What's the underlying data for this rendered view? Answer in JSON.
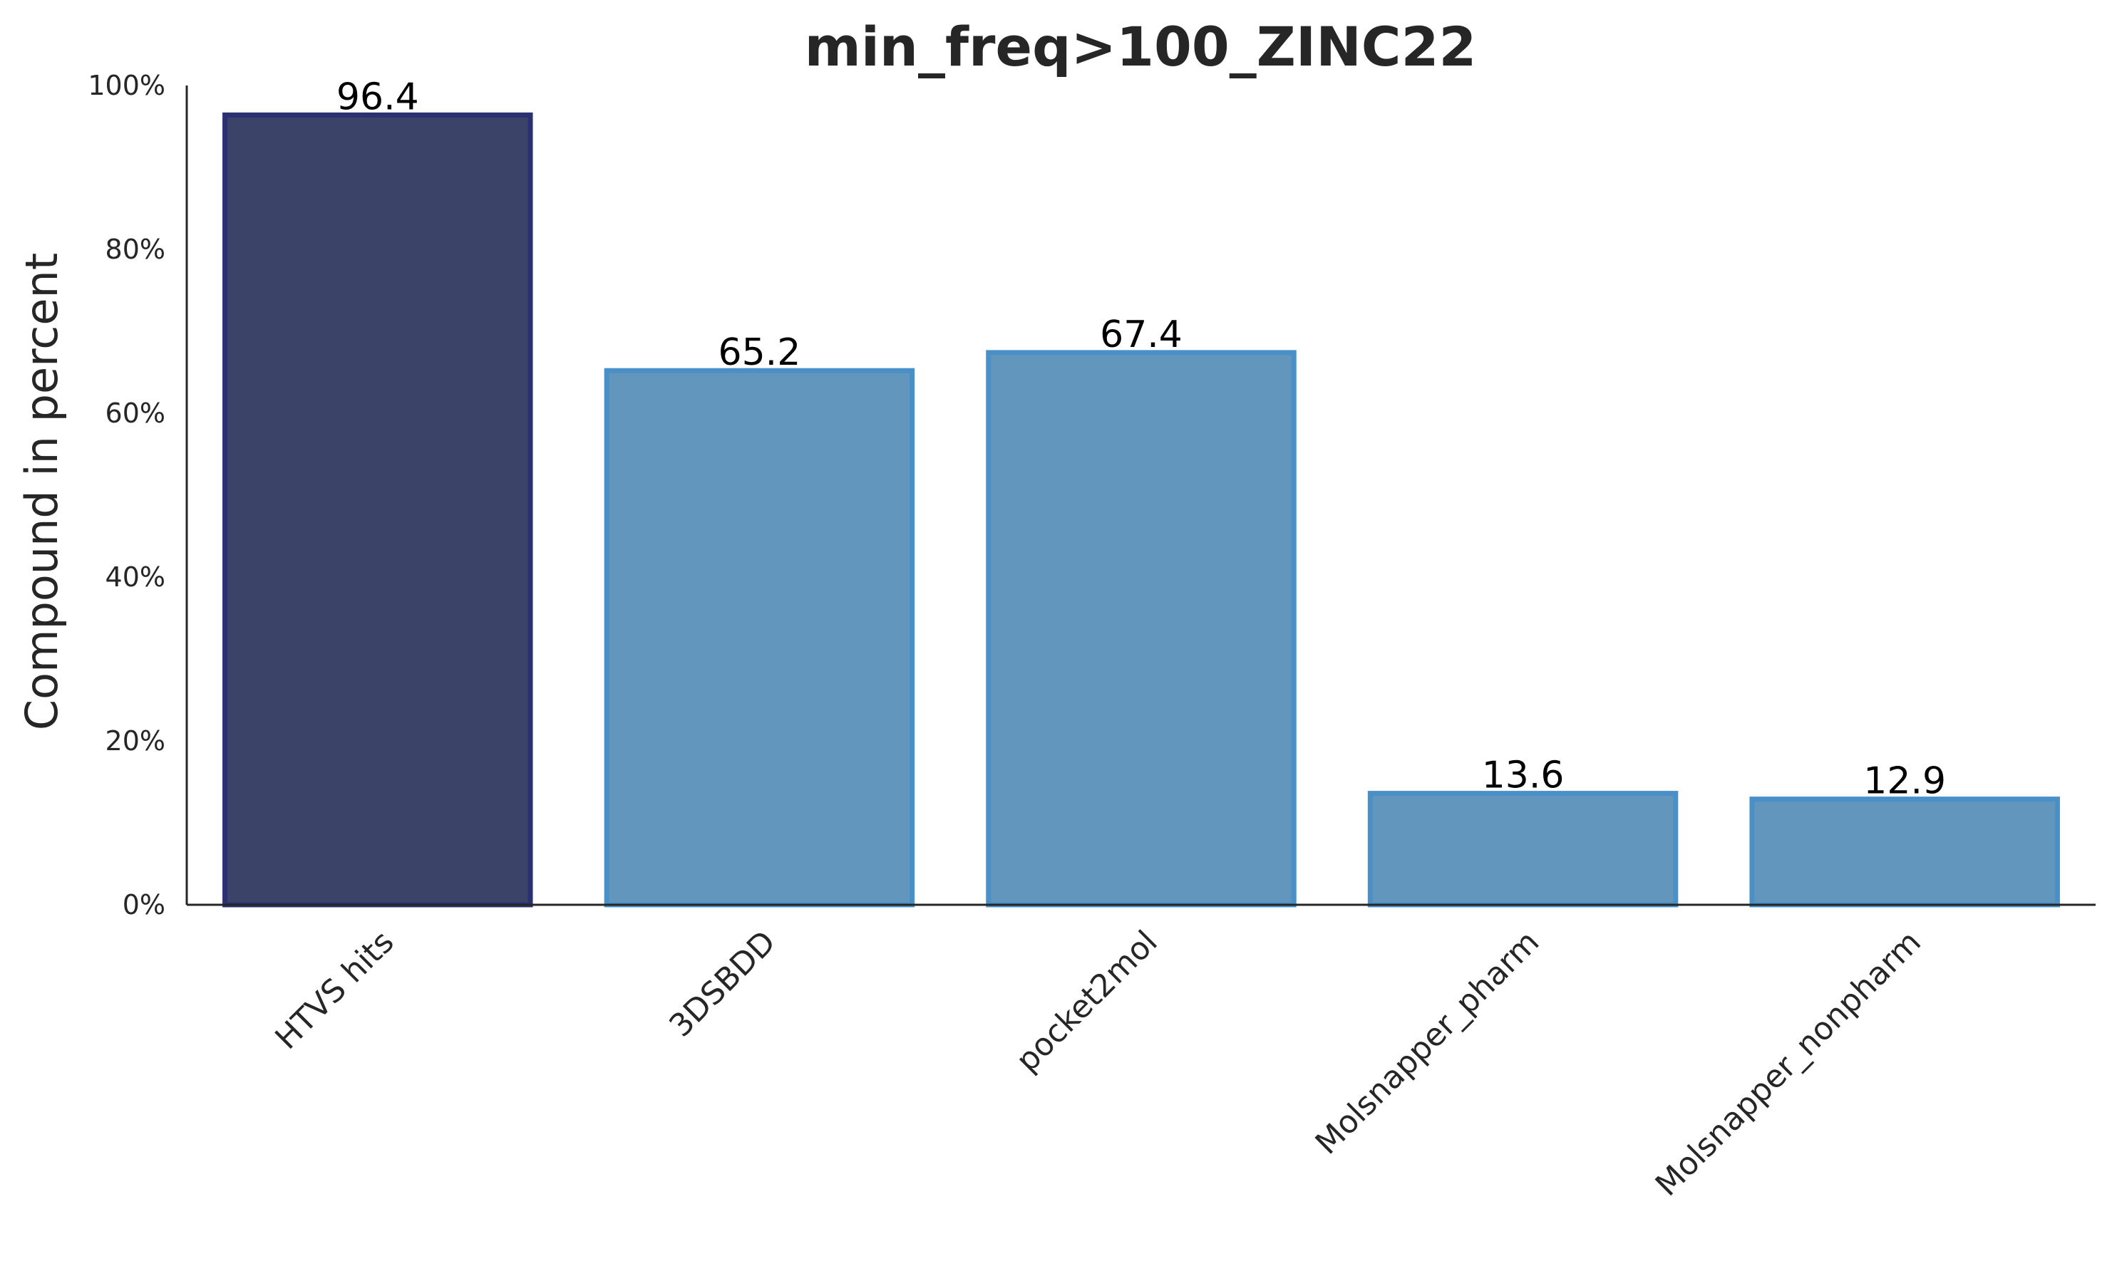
{
  "chart_data": {
    "type": "bar",
    "title": "min_freq>100_ZINC22",
    "xlabel": "",
    "ylabel": "Compound in percent",
    "categories": [
      "HTVS hits",
      "3DSBDD",
      "pocket2mol",
      "Molsnapper_pharm",
      "Molsnapper_nonpharm"
    ],
    "values": [
      96.4,
      65.2,
      67.4,
      13.6,
      12.9
    ],
    "data_labels": [
      "96.4",
      "65.2",
      "67.4",
      "13.6",
      "12.9"
    ],
    "ylim": [
      0,
      100
    ],
    "yticks": [
      0,
      20,
      40,
      60,
      80,
      100
    ],
    "ytick_labels": [
      "0%",
      "20%",
      "40%",
      "60%",
      "80%",
      "100%"
    ],
    "grid": false,
    "legend": "none",
    "colors": {
      "highlight_fill": "#3b4468",
      "highlight_edge": "#2b3170",
      "default_fill": "#6296bd",
      "default_edge": "#4a90c8"
    },
    "highlight_index": 0
  }
}
